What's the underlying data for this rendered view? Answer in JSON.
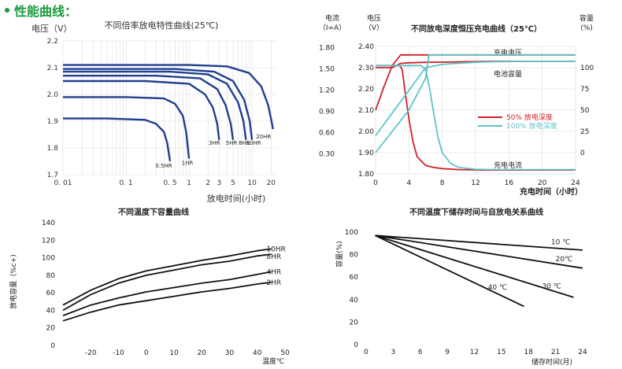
{
  "header": {
    "title": "性能曲线："
  },
  "colors": {
    "header_green": "#1a9a3a",
    "curve_navy": "#1f3f8f",
    "black": "#111111",
    "red": "#d2202a",
    "cyan": "#5cc3c8",
    "grid": "#dddddd"
  },
  "chart_data": [
    {
      "id": "discharge",
      "type": "line",
      "title": "不同倍率放电特性曲线(25℃)",
      "ylabel": "电压（V）",
      "xlabel": "放电时间(小时)",
      "x_scale": "log",
      "xlim": [
        0.01,
        25
      ],
      "ylim": [
        1.7,
        2.2
      ],
      "x_ticks": [
        0.01,
        0.1,
        0.5,
        1,
        2,
        3,
        5,
        10,
        20
      ],
      "x_tick_labels": [
        "0. 01",
        "0. 1",
        "0. 5",
        "1",
        "2",
        "3",
        "5",
        "10",
        "20"
      ],
      "y_ticks": [
        1.7,
        1.8,
        1.9,
        2.0,
        2.1,
        2.2
      ],
      "y_tick_labels": [
        "1.7",
        "1.8",
        "1.9",
        "2.0",
        "2.1",
        "2.2"
      ],
      "series": [
        {
          "name": "0.5HR",
          "x": [
            0.01,
            0.05,
            0.2,
            0.3,
            0.4,
            0.45,
            0.5
          ],
          "y": [
            1.91,
            1.91,
            1.905,
            1.89,
            1.86,
            1.82,
            1.75
          ]
        },
        {
          "name": "1HR",
          "x": [
            0.01,
            0.1,
            0.4,
            0.6,
            0.8,
            0.9,
            1.0
          ],
          "y": [
            1.99,
            1.99,
            1.985,
            1.965,
            1.92,
            1.86,
            1.76
          ]
        },
        {
          "name": "3HR",
          "x": [
            0.01,
            0.2,
            1.0,
            1.8,
            2.4,
            2.8,
            3.0
          ],
          "y": [
            2.05,
            2.05,
            2.04,
            2.0,
            1.95,
            1.89,
            1.83
          ]
        },
        {
          "name": "5HR",
          "x": [
            0.01,
            0.3,
            1.5,
            2.8,
            3.8,
            4.6,
            5.0
          ],
          "y": [
            2.07,
            2.07,
            2.06,
            2.02,
            1.96,
            1.89,
            1.83
          ]
        },
        {
          "name": "8HR",
          "x": [
            0.01,
            0.5,
            2.0,
            4.0,
            6.0,
            7.3,
            8.0
          ],
          "y": [
            2.085,
            2.085,
            2.075,
            2.04,
            1.97,
            1.9,
            1.83
          ]
        },
        {
          "name": "10HR",
          "x": [
            0.01,
            0.6,
            2.5,
            5.0,
            7.5,
            9.2,
            10.0
          ],
          "y": [
            2.095,
            2.095,
            2.085,
            2.05,
            1.98,
            1.9,
            1.83
          ]
        },
        {
          "name": "20HR",
          "x": [
            0.01,
            1.0,
            4.0,
            9.0,
            14.0,
            18.0,
            20.0,
            21.5
          ],
          "y": [
            2.11,
            2.11,
            2.105,
            2.08,
            2.03,
            1.96,
            1.91,
            1.87
          ]
        }
      ]
    },
    {
      "id": "charge",
      "type": "line",
      "title": "不同放电深度恒压充电曲线（25℃）",
      "xlabel": "充电时间（小时）",
      "xlim": [
        0,
        24
      ],
      "x_ticks": [
        0,
        4,
        8,
        12,
        16,
        20,
        24
      ],
      "left_axis1_label": [
        "电流",
        "（I∞A）"
      ],
      "left_axis1_ticks": [
        "1.80",
        "1.50",
        "1.20",
        "0.90",
        "0.60",
        "0.30"
      ],
      "left_axis2_label": [
        "电压",
        "（V）"
      ],
      "left_axis2_range": [
        1.8,
        2.4
      ],
      "left_axis2_ticks": [
        "2.40",
        "2.30",
        "2.20",
        "2.10",
        "2.00",
        "1.90",
        "1.80"
      ],
      "right_axis_label": [
        "容量",
        "(%)"
      ],
      "right_axis_ticks": [
        "100",
        "75",
        "50",
        "25",
        "0"
      ],
      "annotations": [
        "充电电压",
        "电池容量",
        "充电电流"
      ],
      "legend": [
        "50%  放电深度",
        "100% 放电深度"
      ],
      "series": [
        {
          "name": "50%  放电深度",
          "color": "#d2202a",
          "role": "voltage",
          "x": [
            0,
            1,
            2,
            3,
            6.5,
            24
          ],
          "v": [
            2.1,
            2.21,
            2.31,
            2.36,
            2.36,
            2.36
          ]
        },
        {
          "name": "50%  放电深度",
          "color": "#d2202a",
          "role": "capacity",
          "x": [
            0,
            1,
            2,
            3,
            4,
            6,
            8,
            10,
            14,
            24
          ],
          "v": [
            2.3,
            2.3,
            2.3,
            2.32,
            2.323,
            2.325,
            2.326,
            2.327,
            2.33,
            2.33
          ]
        },
        {
          "name": "50%  放电深度",
          "color": "#d2202a",
          "role": "current",
          "x": [
            0,
            2.9,
            3.2,
            3.5,
            4,
            4.5,
            5,
            6,
            7,
            8,
            10,
            13,
            24
          ],
          "v": [
            2.31,
            2.31,
            2.29,
            2.2,
            2.06,
            1.95,
            1.88,
            1.84,
            1.83,
            1.825,
            1.82,
            1.818,
            1.818
          ]
        },
        {
          "name": "100% 放电深度",
          "color": "#5cc3c8",
          "role": "voltage",
          "x": [
            0,
            4,
            6,
            6.4,
            24
          ],
          "v": [
            1.9,
            2.1,
            2.25,
            2.36,
            2.36
          ]
        },
        {
          "name": "100% 放电深度",
          "color": "#5cc3c8",
          "role": "capacity",
          "x": [
            0,
            3,
            6,
            8,
            10,
            12,
            14,
            18,
            24
          ],
          "v": [
            1.98,
            2.14,
            2.3,
            2.315,
            2.321,
            2.325,
            2.328,
            2.33,
            2.33
          ]
        },
        {
          "name": "100% 放电深度",
          "color": "#5cc3c8",
          "role": "current",
          "x": [
            0,
            5.5,
            6,
            6.5,
            7,
            7.5,
            8,
            9,
            10,
            12,
            14,
            24
          ],
          "v": [
            2.31,
            2.31,
            2.29,
            2.2,
            2.08,
            1.97,
            1.9,
            1.85,
            1.83,
            1.822,
            1.82,
            1.82
          ]
        }
      ]
    },
    {
      "id": "temperature",
      "type": "line",
      "title": "不同温度下容量曲线",
      "ylabel": "放电容量（%c+)",
      "xlabel": "温度℃",
      "xlim": [
        -30,
        50
      ],
      "ylim": [
        0,
        140
      ],
      "x_ticks": [
        -20,
        -10,
        0,
        10,
        20,
        30,
        40,
        50
      ],
      "y_ticks": [
        0,
        20,
        40,
        60,
        80,
        100,
        120,
        140
      ],
      "series": [
        {
          "name": "10HR",
          "x": [
            -30,
            -20,
            -10,
            0,
            10,
            20,
            30,
            40,
            45
          ],
          "y": [
            46,
            63,
            76,
            85,
            91,
            97,
            102,
            108,
            110
          ]
        },
        {
          "name": "8HR",
          "x": [
            -30,
            -20,
            -10,
            0,
            10,
            20,
            30,
            40,
            45
          ],
          "y": [
            40,
            58,
            71,
            80,
            86,
            92,
            96,
            102,
            104
          ]
        },
        {
          "name": "4HR",
          "x": [
            -30,
            -20,
            -10,
            0,
            10,
            20,
            30,
            40,
            45
          ],
          "y": [
            34,
            46,
            54,
            61,
            66,
            71,
            75,
            81,
            84
          ]
        },
        {
          "name": "2HR",
          "x": [
            -30,
            -20,
            -10,
            0,
            10,
            20,
            30,
            40,
            45
          ],
          "y": [
            28,
            38,
            46,
            51,
            56,
            61,
            65,
            70,
            72
          ]
        }
      ]
    },
    {
      "id": "storage",
      "type": "line",
      "title": "不同温度下储存时间与自放电关系曲线",
      "ylabel": "容量(%)",
      "xlabel": "储存时间(月)",
      "xlim": [
        0,
        24
      ],
      "ylim": [
        0,
        100
      ],
      "x_ticks": [
        0,
        3,
        6,
        9,
        12,
        15,
        18,
        21,
        24
      ],
      "y_ticks": [
        0,
        20,
        40,
        60,
        80,
        100
      ],
      "series": [
        {
          "name": "10 ℃",
          "x": [
            1,
            24
          ],
          "y": [
            97,
            84
          ]
        },
        {
          "name": "20℃",
          "x": [
            1,
            24
          ],
          "y": [
            97,
            68
          ]
        },
        {
          "name": "30 ℃",
          "x": [
            1,
            23
          ],
          "y": [
            97,
            42
          ]
        },
        {
          "name": "40 ℃",
          "x": [
            1,
            17.5
          ],
          "y": [
            97,
            34
          ]
        }
      ]
    }
  ]
}
